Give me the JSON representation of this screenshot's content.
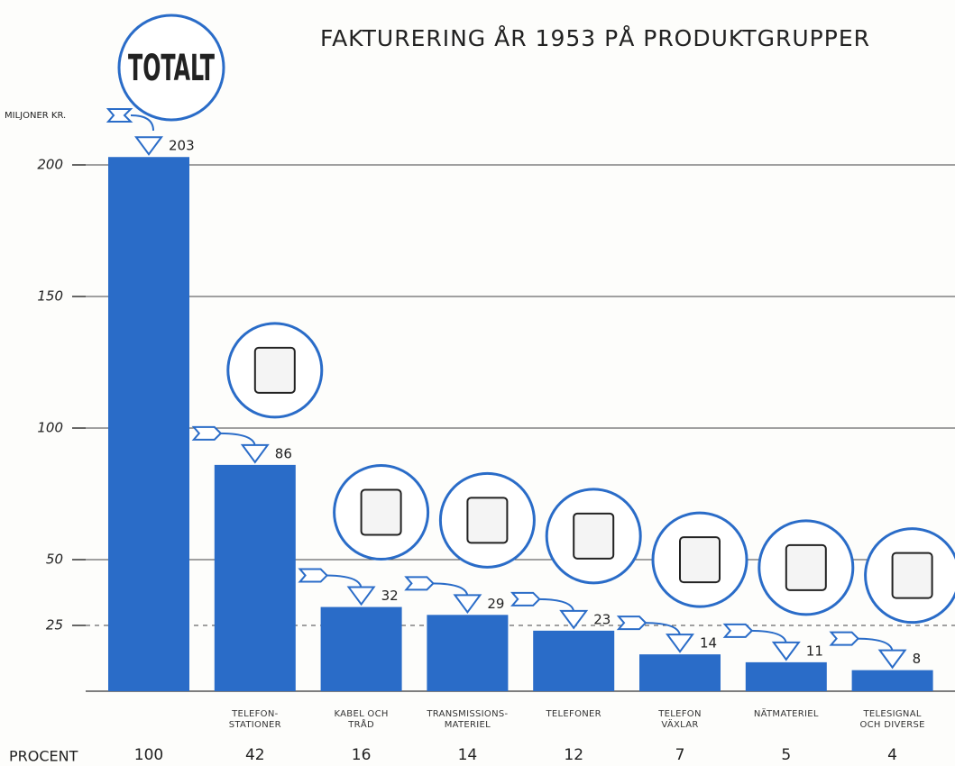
{
  "chart_data": {
    "type": "bar",
    "title": "FAKTURERING ÅR 1953 PÅ PRODUKTGRUPPER",
    "total_label": "TOTALT",
    "y_axis_label": "MILJONER KR.",
    "categories": [
      null,
      "TELEFON-\nSTATIONER",
      "KABEL OCH\nTRÅD",
      "TRANSMISSIONS-\nMATERIEL",
      "TELEFONER",
      "TELEFON\nVÄXLAR",
      "NÄTMATERIEL",
      "TELESIGNAL\nOCH DIVERSE"
    ],
    "values": [
      203,
      86,
      32,
      29,
      23,
      14,
      11,
      8
    ],
    "percent_label": "PROCENT",
    "percent": [
      100,
      42,
      16,
      14,
      12,
      7,
      5,
      4
    ],
    "color": "#2a6cc8",
    "ylim": [
      0,
      200
    ],
    "yticks": [
      25,
      50,
      100,
      150,
      200
    ],
    "grid": true
  }
}
